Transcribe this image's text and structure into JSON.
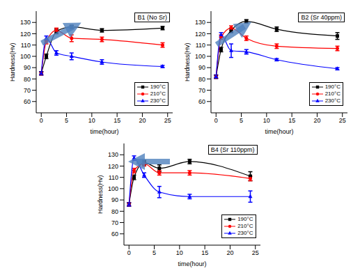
{
  "chart_data": [
    {
      "type": "line",
      "title": "B1 (No Sr)",
      "x_label": "time(hour)",
      "y_label": "Hardness(Hv)",
      "x": [
        0,
        1,
        3,
        6,
        12,
        24
      ],
      "xlim": [
        -1,
        26
      ],
      "xticks": [
        0,
        5,
        10,
        15,
        20,
        25
      ],
      "ylim": [
        50,
        140
      ],
      "yticks": [
        60,
        70,
        80,
        90,
        100,
        110,
        120,
        130
      ],
      "legend": "lower right",
      "series": [
        {
          "name": "190°C",
          "color": "#000000",
          "marker": "square",
          "values": [
            85,
            100,
            122,
            126,
            123,
            125
          ],
          "errors": [
            1.5,
            2,
            2,
            1.5,
            1.5,
            1.5
          ]
        },
        {
          "name": "210°C",
          "color": "#ff0000",
          "marker": "circle",
          "values": [
            85,
            113,
            123,
            116,
            115,
            110
          ],
          "errors": [
            1.5,
            2,
            2,
            3,
            2,
            2
          ]
        },
        {
          "name": "230°C",
          "color": "#0000ff",
          "marker": "triangle",
          "values": [
            85,
            116,
            103,
            100,
            95,
            91
          ],
          "errors": [
            1.5,
            2,
            2,
            3,
            2,
            1
          ]
        }
      ]
    },
    {
      "type": "line",
      "title": "B2 (Sr 40ppm)",
      "x_label": "time(hour)",
      "y_label": "Hardness(Hv)",
      "x": [
        0,
        1,
        3,
        6,
        12,
        24
      ],
      "xlim": [
        -1,
        26
      ],
      "xticks": [
        0,
        5,
        10,
        15,
        20,
        25
      ],
      "ylim": [
        50,
        140
      ],
      "yticks": [
        60,
        70,
        80,
        90,
        100,
        110,
        120,
        130
      ],
      "legend": "lower right",
      "series": [
        {
          "name": "190°C",
          "color": "#000000",
          "marker": "square",
          "values": [
            82,
            106,
            123,
            131,
            124,
            118
          ],
          "errors": [
            1.5,
            2,
            2,
            1.5,
            2,
            3
          ]
        },
        {
          "name": "210°C",
          "color": "#ff0000",
          "marker": "circle",
          "values": [
            82,
            117,
            125,
            116,
            109,
            107
          ],
          "errors": [
            1.5,
            2,
            2,
            2,
            2,
            2
          ]
        },
        {
          "name": "230°C",
          "color": "#0000ff",
          "marker": "triangle",
          "values": [
            82,
            119,
            105,
            104,
            97,
            89
          ],
          "errors": [
            1.5,
            2,
            6,
            2,
            1,
            1
          ]
        }
      ]
    },
    {
      "type": "line",
      "title": "B4 (Sr 110ppm)",
      "x_label": "time(hour)",
      "y_label": "Hardness(Hv)",
      "x": [
        0,
        1,
        3,
        6,
        12,
        24
      ],
      "xlim": [
        -1,
        26
      ],
      "xticks": [
        0,
        5,
        10,
        15,
        20,
        25
      ],
      "ylim": [
        50,
        140
      ],
      "yticks": [
        60,
        70,
        80,
        90,
        100,
        110,
        120,
        130
      ],
      "legend": "lower right",
      "series": [
        {
          "name": "190°C",
          "color": "#000000",
          "marker": "square",
          "values": [
            86,
            110,
            123,
            118,
            124,
            111
          ],
          "errors": [
            1.5,
            2,
            2,
            3,
            2,
            4
          ]
        },
        {
          "name": "210°C",
          "color": "#ff0000",
          "marker": "circle",
          "values": [
            86,
            116,
            122,
            114,
            114,
            109
          ],
          "errors": [
            1.5,
            2,
            2,
            2,
            2,
            2
          ]
        },
        {
          "name": "230°C",
          "color": "#0000ff",
          "marker": "triangle",
          "values": [
            86,
            127,
            112,
            97,
            93,
            93
          ],
          "errors": [
            1.5,
            2,
            2,
            5,
            2,
            5
          ]
        }
      ]
    }
  ]
}
